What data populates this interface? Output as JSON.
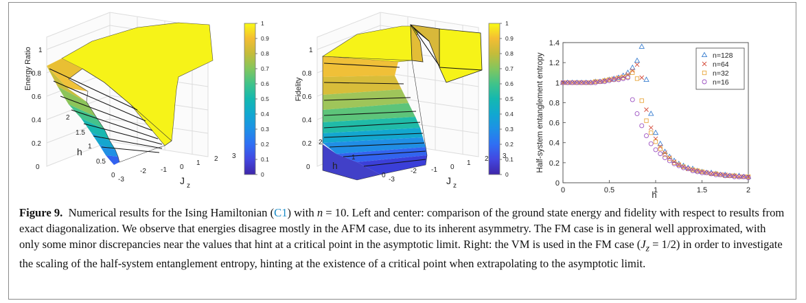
{
  "figure": {
    "label": "Figure 9.",
    "caption_parts": {
      "p1": "Numerical results for the Ising Hamiltonian (",
      "ref": "C1",
      "p2": ") with ",
      "n_var": "n",
      "p3": " = 10. Left and center: comparison of the ground state energy and fidelity with respect to results from exact diagonalization. We observe that energies disagree mostly in the AFM case, due to its inherent asymmetry. The FM case is in general well approximated, with only some minor discrepancies near the values that hint at a critical point in the asymptotic limit. Right: the VM is used in the FM case (",
      "jz": "J",
      "jz_sub": "z",
      "p4": " = 1/2) in order to investigate the scaling of the half-system entanglement entropy, hinting at the existence of a critical point when extrapolating to the asymptotic limit."
    }
  },
  "surface_left": {
    "zlabel": "Energy Ratio",
    "ylabel": "h",
    "xlabel": "J",
    "xlabel_sub": "z",
    "z_ticks": [
      "0",
      "0.2",
      "0.4",
      "0.6",
      "0.8",
      "1"
    ],
    "h_ticks": [
      "0",
      "0.5",
      "1",
      "1.5",
      "2"
    ],
    "jz_ticks": [
      "-3",
      "-2",
      "-1",
      "0",
      "1",
      "2",
      "3"
    ],
    "colorbar_ticks": [
      "0",
      "0.1",
      "0.2",
      "0.3",
      "0.4",
      "0.5",
      "0.6",
      "0.7",
      "0.8",
      "0.9",
      "1"
    ]
  },
  "surface_center": {
    "zlabel": "Fidelity",
    "ylabel": "h",
    "xlabel": "J",
    "xlabel_sub": "z",
    "z_ticks": [
      "0",
      "0.2",
      "0.4",
      "0.6",
      "0.8",
      "1"
    ],
    "h_ticks": [
      "0",
      "1",
      "2"
    ],
    "jz_ticks": [
      "-3",
      "-2",
      "-1",
      "0",
      "1",
      "2",
      "3"
    ],
    "colorbar_ticks": [
      "0",
      "0.1",
      "0.2",
      "0.3",
      "0.4",
      "0.5",
      "0.6",
      "0.7",
      "0.8",
      "0.9",
      "1"
    ]
  },
  "colormap": [
    "#3e26a8",
    "#4347e0",
    "#2f6ff4",
    "#1e90e6",
    "#11a8d0",
    "#14b8b0",
    "#40c38a",
    "#82c65e",
    "#c4bc3a",
    "#f4bd33",
    "#f9fa14"
  ],
  "chart_data": {
    "type": "scatter",
    "xlabel": "h",
    "ylabel": "Half-system entanglement entropy",
    "xlim": [
      0,
      2
    ],
    "ylim": [
      0,
      1.4
    ],
    "x_ticks": [
      "0",
      "0.5",
      "1",
      "1.5",
      "2"
    ],
    "y_ticks": [
      "0",
      "0.2",
      "0.4",
      "0.6",
      "0.8",
      "1",
      "1.2",
      "1.4"
    ],
    "legend_position": "top-right",
    "series": [
      {
        "name": "n=128",
        "marker": "triangle",
        "color": "#3a7fd0",
        "x": [
          0,
          0.05,
          0.1,
          0.15,
          0.2,
          0.25,
          0.3,
          0.35,
          0.4,
          0.45,
          0.5,
          0.55,
          0.6,
          0.65,
          0.7,
          0.75,
          0.8,
          0.85,
          0.9,
          0.95,
          1.0,
          1.05,
          1.1,
          1.15,
          1.2,
          1.25,
          1.3,
          1.35,
          1.4,
          1.45,
          1.5,
          1.55,
          1.6,
          1.65,
          1.7,
          1.75,
          1.8,
          1.85,
          1.9,
          1.95,
          2.0
        ],
        "y": [
          1.0,
          1.0,
          1.0,
          1.0,
          1.0,
          1.0,
          1.0,
          1.01,
          1.01,
          1.02,
          1.03,
          1.04,
          1.05,
          1.07,
          1.1,
          1.15,
          1.22,
          1.36,
          1.03,
          0.69,
          0.5,
          0.39,
          0.31,
          0.26,
          0.22,
          0.19,
          0.17,
          0.15,
          0.14,
          0.12,
          0.11,
          0.1,
          0.1,
          0.09,
          0.08,
          0.08,
          0.07,
          0.07,
          0.07,
          0.06,
          0.06
        ]
      },
      {
        "name": "n=64",
        "marker": "x",
        "color": "#d44b3a",
        "x": [
          0,
          0.05,
          0.1,
          0.15,
          0.2,
          0.25,
          0.3,
          0.35,
          0.4,
          0.45,
          0.5,
          0.55,
          0.6,
          0.65,
          0.7,
          0.75,
          0.8,
          0.85,
          0.9,
          0.95,
          1.0,
          1.05,
          1.1,
          1.15,
          1.2,
          1.25,
          1.3,
          1.35,
          1.4,
          1.45,
          1.5,
          1.55,
          1.6,
          1.65,
          1.7,
          1.75,
          1.8,
          1.85,
          1.9,
          1.95,
          2.0
        ],
        "y": [
          1.0,
          1.0,
          1.0,
          1.0,
          1.0,
          1.0,
          1.0,
          1.01,
          1.01,
          1.02,
          1.03,
          1.04,
          1.05,
          1.06,
          1.08,
          1.12,
          1.18,
          1.05,
          0.73,
          0.55,
          0.44,
          0.36,
          0.3,
          0.25,
          0.21,
          0.18,
          0.16,
          0.14,
          0.13,
          0.12,
          0.11,
          0.1,
          0.09,
          0.09,
          0.08,
          0.08,
          0.07,
          0.07,
          0.06,
          0.06,
          0.06
        ]
      },
      {
        "name": "n=32",
        "marker": "square",
        "color": "#e8a53a",
        "x": [
          0,
          0.05,
          0.1,
          0.15,
          0.2,
          0.25,
          0.3,
          0.35,
          0.4,
          0.45,
          0.5,
          0.55,
          0.6,
          0.65,
          0.7,
          0.75,
          0.8,
          0.85,
          0.9,
          0.95,
          1.0,
          1.05,
          1.1,
          1.15,
          1.2,
          1.25,
          1.3,
          1.35,
          1.4,
          1.45,
          1.5,
          1.55,
          1.6,
          1.65,
          1.7,
          1.75,
          1.8,
          1.85,
          1.9,
          1.95,
          2.0
        ],
        "y": [
          1.0,
          1.0,
          1.0,
          1.0,
          1.0,
          1.0,
          1.0,
          1.01,
          1.01,
          1.02,
          1.03,
          1.03,
          1.04,
          1.05,
          1.06,
          1.1,
          1.04,
          0.82,
          0.62,
          0.5,
          0.41,
          0.34,
          0.28,
          0.24,
          0.2,
          0.18,
          0.16,
          0.14,
          0.13,
          0.12,
          0.11,
          0.1,
          0.09,
          0.09,
          0.08,
          0.07,
          0.07,
          0.07,
          0.06,
          0.06,
          0.06
        ]
      },
      {
        "name": "n=16",
        "marker": "circle",
        "color": "#9b4fc0",
        "x": [
          0,
          0.05,
          0.1,
          0.15,
          0.2,
          0.25,
          0.3,
          0.35,
          0.4,
          0.45,
          0.5,
          0.55,
          0.6,
          0.65,
          0.7,
          0.75,
          0.8,
          0.85,
          0.9,
          0.95,
          1.0,
          1.05,
          1.1,
          1.15,
          1.2,
          1.25,
          1.3,
          1.35,
          1.4,
          1.45,
          1.5,
          1.55,
          1.6,
          1.65,
          1.7,
          1.75,
          1.8,
          1.85,
          1.9,
          1.95,
          2.0
        ],
        "y": [
          1.0,
          1.0,
          1.0,
          1.0,
          1.0,
          1.0,
          1.0,
          1.0,
          1.01,
          1.01,
          1.02,
          1.03,
          1.03,
          1.04,
          1.05,
          0.83,
          0.69,
          0.57,
          0.47,
          0.39,
          0.33,
          0.29,
          0.25,
          0.22,
          0.19,
          0.17,
          0.15,
          0.14,
          0.12,
          0.11,
          0.1,
          0.1,
          0.09,
          0.08,
          0.08,
          0.07,
          0.07,
          0.06,
          0.06,
          0.06,
          0.05
        ]
      }
    ]
  }
}
